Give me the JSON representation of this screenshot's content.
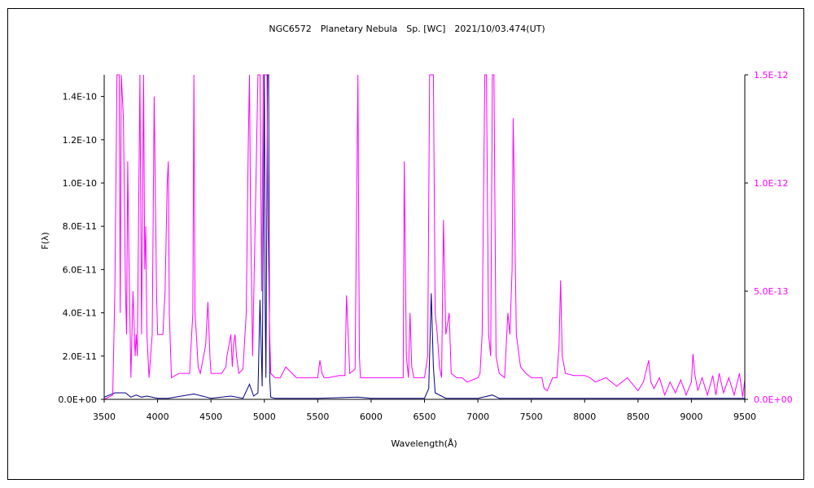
{
  "chart_data": {
    "type": "line",
    "title": "NGC6572　Planetary Nebula　Sp. [WC]　2021/10/03.474(UT)",
    "xlabel": "Wavelength(Å)",
    "ylabel": "F(λ)",
    "xlim": [
      3500,
      9500
    ],
    "ylim_left": [
      0,
      1.5e-10
    ],
    "ylim_right": [
      0,
      1.5e-12
    ],
    "x_ticks": [
      "3500",
      "4000",
      "4500",
      "5000",
      "5500",
      "6000",
      "6500",
      "7000",
      "7500",
      "8000",
      "8500",
      "9000",
      "9500"
    ],
    "y_ticks_left": [
      "0.0E+00",
      "2.0E-11",
      "4.0E-11",
      "6.0E-11",
      "8.0E-11",
      "1.0E-10",
      "1.2E-10",
      "1.4E-10"
    ],
    "y_ticks_right": [
      "0.0E+00",
      "5.0E-13",
      "1.0E-12",
      "1.5E-12"
    ],
    "colors": {
      "left_series": "#000080",
      "right_series": "#ff00ff",
      "axis": "#000000"
    },
    "series": [
      {
        "axis": "left",
        "x": [
          3500,
          3600,
          3700,
          3750,
          3800,
          3850,
          3900,
          4000,
          4100,
          4340,
          4500,
          4686,
          4800,
          4861,
          4900,
          4940,
          4959,
          4980,
          5000,
          5007,
          5015,
          5030,
          5040,
          5050,
          5060,
          5100,
          5500,
          5876,
          6000,
          6300,
          6500,
          6540,
          6563,
          6583,
          6600,
          6700,
          7000,
          7135,
          7200,
          7500,
          8000,
          8500,
          9000,
          9500
        ],
        "y": [
          1e-12,
          3e-12,
          3e-12,
          1e-12,
          2e-12,
          1e-12,
          1.5e-12,
          5e-13,
          5e-13,
          2.5e-12,
          5e-13,
          1.5e-12,
          5e-13,
          7e-12,
          1.5e-12,
          3e-12,
          4.6e-11,
          6e-12,
          1.5e-10,
          4.7e-11,
          1e-11,
          1.5e-10,
          1.5e-10,
          1e-11,
          1e-12,
          5e-13,
          5e-13,
          1e-12,
          5e-13,
          5e-13,
          5e-13,
          5e-12,
          4.9e-11,
          1.5e-11,
          3e-12,
          5e-13,
          5e-13,
          2e-12,
          5e-13,
          5e-13,
          5e-13,
          5e-13,
          5e-13,
          5e-13
        ]
      },
      {
        "axis": "right",
        "x": [
          3500,
          3580,
          3600,
          3620,
          3640,
          3650,
          3660,
          3680,
          3700,
          3710,
          3720,
          3730,
          3750,
          3770,
          3790,
          3800,
          3810,
          3835,
          3850,
          3869,
          3880,
          3889,
          3900,
          3920,
          3950,
          3968,
          3990,
          4000,
          4050,
          4070,
          4090,
          4101,
          4110,
          4130,
          4200,
          4300,
          4330,
          4340,
          4350,
          4363,
          4380,
          4400,
          4450,
          4471,
          4490,
          4500,
          4550,
          4600,
          4640,
          4650,
          4686,
          4700,
          4711,
          4725,
          4740,
          4760,
          4800,
          4830,
          4850,
          4861,
          4870,
          4890,
          4910,
          4940,
          4959,
          4975,
          4990,
          5007,
          5025,
          5035,
          5050,
          5060,
          5100,
          5150,
          5200,
          5300,
          5400,
          5500,
          5520,
          5540,
          5560,
          5600,
          5700,
          5755,
          5770,
          5800,
          5850,
          5876,
          5890,
          5900,
          6000,
          6100,
          6200,
          6250,
          6300,
          6310,
          6330,
          6350,
          6364,
          6380,
          6400,
          6450,
          6500,
          6530,
          6548,
          6563,
          6583,
          6600,
          6620,
          6640,
          6660,
          6678,
          6700,
          6716,
          6731,
          6750,
          6800,
          6850,
          6900,
          6950,
          7000,
          7020,
          7040,
          7065,
          7080,
          7100,
          7120,
          7136,
          7150,
          7170,
          7200,
          7250,
          7281,
          7300,
          7320,
          7330,
          7340,
          7360,
          7400,
          7450,
          7500,
          7550,
          7600,
          7620,
          7650,
          7700,
          7740,
          7760,
          7775,
          7790,
          7820,
          7900,
          8000,
          8050,
          8100,
          8200,
          8300,
          8400,
          8500,
          8550,
          8600,
          8620,
          8650,
          8700,
          8750,
          8800,
          8850,
          8900,
          8950,
          9000,
          9014,
          9030,
          9060,
          9100,
          9150,
          9200,
          9229,
          9260,
          9300,
          9350,
          9400,
          9450,
          9480,
          9500
        ],
        "y": [
          0,
          2e-14,
          5e-13,
          1.5e-12,
          1.5e-12,
          4e-13,
          1.5e-12,
          1.3e-12,
          5e-13,
          3e-13,
          1.1e-12,
          7e-13,
          1e-13,
          5e-13,
          2e-13,
          3e-13,
          2e-13,
          1.5e-12,
          3e-13,
          1.5e-12,
          6e-13,
          8e-13,
          3e-13,
          1e-13,
          3e-13,
          1.4e-12,
          5e-13,
          3e-13,
          3e-13,
          5e-13,
          1e-12,
          1.1e-12,
          4e-13,
          1e-13,
          1.2e-13,
          1.2e-13,
          4e-13,
          1.5e-12,
          4e-13,
          3e-13,
          1.5e-13,
          1.2e-13,
          2.5e-13,
          4.5e-13,
          2e-13,
          1.2e-13,
          1.2e-13,
          1.2e-13,
          1.5e-13,
          2e-13,
          3e-13,
          1.5e-13,
          2.5e-13,
          3e-13,
          2e-13,
          1.2e-13,
          1.4e-13,
          4e-13,
          1.2e-12,
          1.5e-12,
          9e-13,
          2e-13,
          7e-13,
          1.5e-12,
          1.5e-12,
          5e-13,
          1.5e-12,
          1.5e-12,
          1.5e-12,
          8e-13,
          3e-13,
          1.2e-13,
          1e-13,
          1e-13,
          1.5e-13,
          1e-13,
          1e-13,
          1e-13,
          1.8e-13,
          1.2e-13,
          1e-13,
          1e-13,
          1.1e-13,
          1.1e-13,
          4.8e-13,
          1.2e-13,
          1.4e-13,
          1.5e-12,
          2e-13,
          1e-13,
          1e-13,
          1e-13,
          1e-13,
          1e-13,
          1e-13,
          1.1e-12,
          2e-13,
          1e-13,
          4e-13,
          1.5e-13,
          1e-13,
          1e-13,
          1e-13,
          2e-13,
          1.5e-12,
          1.5e-12,
          1.5e-12,
          4e-13,
          3e-13,
          1.5e-13,
          1e-13,
          8.3e-13,
          3e-13,
          3.5e-13,
          4e-13,
          1.2e-13,
          1e-13,
          1e-13,
          8e-14,
          9e-14,
          1e-13,
          1.2e-13,
          3e-13,
          1.5e-12,
          1.5e-12,
          3e-13,
          2e-13,
          1.5e-12,
          1.5e-12,
          2e-13,
          1.2e-13,
          1e-13,
          4e-13,
          3e-13,
          6e-13,
          1.3e-12,
          1e-12,
          3e-13,
          1.5e-13,
          1.2e-13,
          1e-13,
          1e-13,
          1e-13,
          5e-14,
          4e-14,
          1e-13,
          1e-13,
          2.5e-13,
          5.5e-13,
          2e-13,
          1.2e-13,
          1.1e-13,
          1.1e-13,
          1e-13,
          8e-14,
          1e-13,
          6e-14,
          1e-13,
          4e-14,
          8e-14,
          1.8e-13,
          8e-14,
          5e-14,
          1e-13,
          2e-14,
          8e-14,
          3e-14,
          9e-14,
          2e-14,
          8e-14,
          2.1e-13,
          1.2e-13,
          4e-14,
          1e-13,
          2e-14,
          1.1e-13,
          2e-14,
          1.2e-13,
          3e-14,
          1e-13,
          2e-14,
          1.2e-13,
          1e-14,
          9e-14
        ]
      }
    ]
  }
}
